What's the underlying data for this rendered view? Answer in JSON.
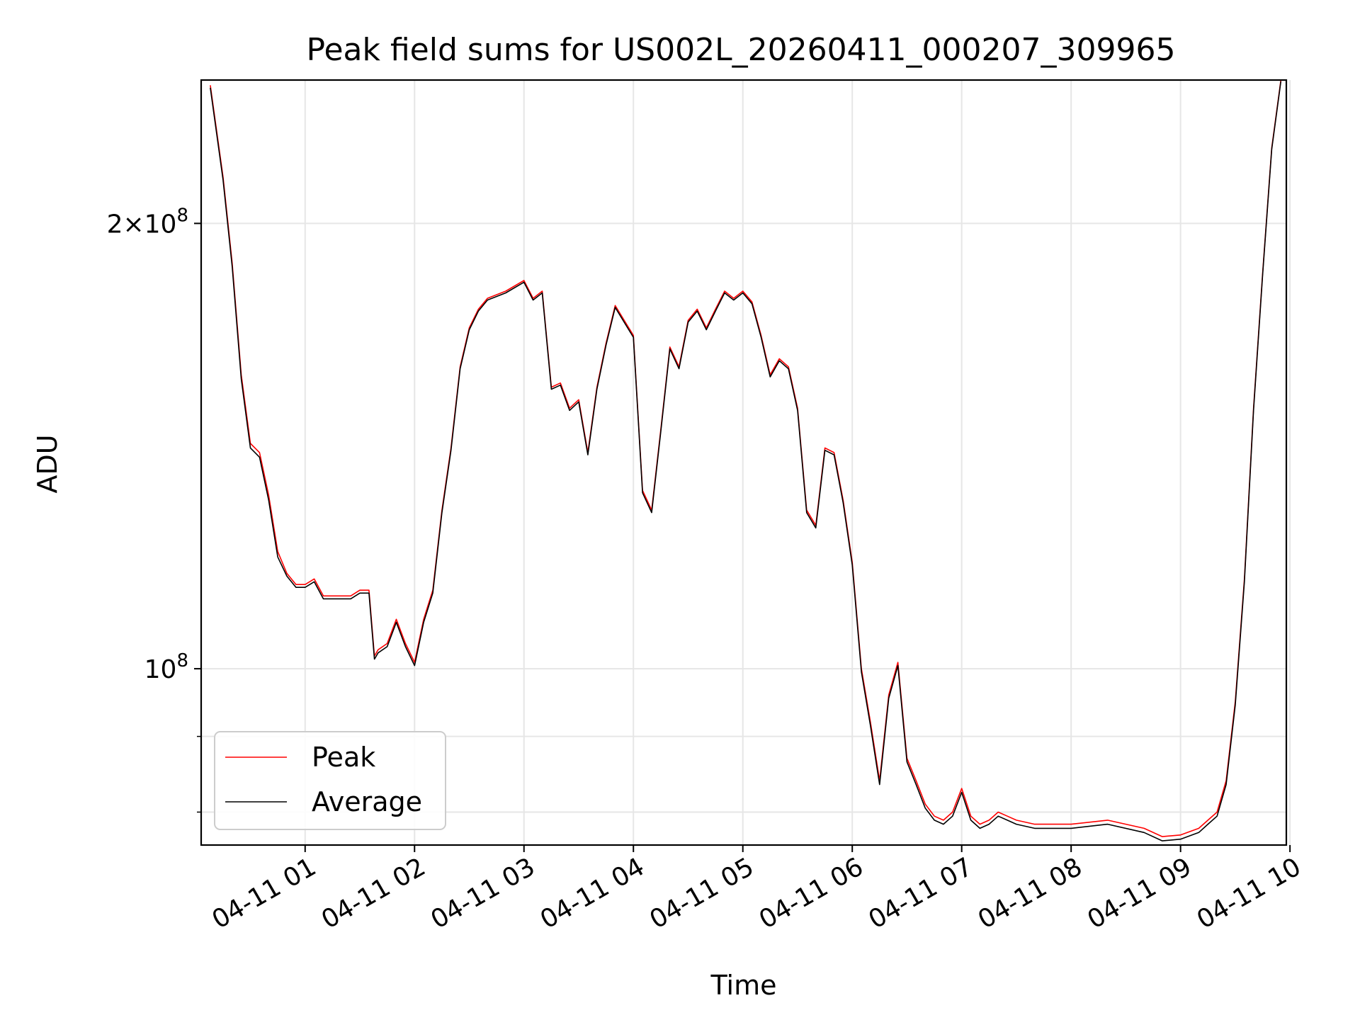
{
  "chart_data": {
    "type": "line",
    "title": "Peak field sums for US002L_20260411_000207_309965",
    "xlabel": "Time",
    "ylabel": "ADU",
    "y_scale": "log",
    "xlim": [
      "2026-04-11 00:03",
      "2026-04-11 09:58"
    ],
    "ylim": [
      76000000,
      250000000
    ],
    "grid": true,
    "legend_position": "lower-left",
    "x_ticks": [
      "04-11 01",
      "04-11 02",
      "04-11 03",
      "04-11 04",
      "04-11 05",
      "04-11 06",
      "04-11 07",
      "04-11 08",
      "04-11 09",
      "04-11 10"
    ],
    "x_tick_times": [
      "2026-04-11 01:00",
      "2026-04-11 02:00",
      "2026-04-11 03:00",
      "2026-04-11 04:00",
      "2026-04-11 05:00",
      "2026-04-11 06:00",
      "2026-04-11 07:00",
      "2026-04-11 08:00",
      "2026-04-11 09:00",
      "2026-04-11 10:00"
    ],
    "y_tick_labels": [
      {
        "value": 100000000,
        "mantissa": "",
        "base": "10",
        "exponent": "8"
      },
      {
        "value": 200000000,
        "mantissa": "2×",
        "base": "10",
        "exponent": "8"
      }
    ],
    "y_minor_ticks": [
      80000000,
      90000000
    ],
    "x": [
      "00:08",
      "00:15",
      "00:20",
      "00:25",
      "00:30",
      "00:35",
      "00:40",
      "00:45",
      "00:50",
      "00:55",
      "01:00",
      "01:05",
      "01:10",
      "01:15",
      "01:20",
      "01:25",
      "01:30",
      "01:35",
      "01:38",
      "01:40",
      "01:45",
      "01:50",
      "01:55",
      "02:00",
      "02:05",
      "02:10",
      "02:15",
      "02:20",
      "02:25",
      "02:30",
      "02:35",
      "02:40",
      "02:50",
      "03:00",
      "03:05",
      "03:10",
      "03:15",
      "03:20",
      "03:25",
      "03:30",
      "03:35",
      "03:40",
      "03:45",
      "03:50",
      "04:00",
      "04:05",
      "04:10",
      "04:15",
      "04:20",
      "04:25",
      "04:30",
      "04:35",
      "04:40",
      "04:45",
      "04:50",
      "04:55",
      "05:00",
      "05:05",
      "05:10",
      "05:15",
      "05:20",
      "05:25",
      "05:30",
      "05:35",
      "05:40",
      "05:45",
      "05:50",
      "05:55",
      "06:00",
      "06:05",
      "06:10",
      "06:15",
      "06:20",
      "06:25",
      "06:30",
      "06:35",
      "06:40",
      "06:45",
      "06:50",
      "06:55",
      "07:00",
      "07:05",
      "07:10",
      "07:15",
      "07:20",
      "07:25",
      "07:30",
      "07:40",
      "08:00",
      "08:20",
      "08:40",
      "08:50",
      "09:00",
      "09:10",
      "09:15",
      "09:20",
      "09:25",
      "09:30",
      "09:35",
      "09:40",
      "09:45",
      "09:50",
      "09:55"
    ],
    "series": [
      {
        "name": "Peak",
        "color": "#ff0000",
        "values": [
          248000000,
          215000000,
          188000000,
          158000000,
          142000000,
          140000000,
          131000000,
          120000000,
          116000000,
          114000000,
          114000000,
          115000000,
          112000000,
          112000000,
          112000000,
          112000000,
          113000000,
          113000000,
          102000000,
          103000000,
          104000000,
          108000000,
          104000000,
          101000000,
          108000000,
          113000000,
          128000000,
          141000000,
          160000000,
          170000000,
          175000000,
          178000000,
          180000000,
          183000000,
          178000000,
          180000000,
          155000000,
          156000000,
          150000000,
          152000000,
          140000000,
          155000000,
          166000000,
          176000000,
          168000000,
          132000000,
          128000000,
          145000000,
          165000000,
          160000000,
          172000000,
          175000000,
          170000000,
          175000000,
          180000000,
          178000000,
          180000000,
          177000000,
          168000000,
          158000000,
          162000000,
          160000000,
          150000000,
          128000000,
          125000000,
          141000000,
          140000000,
          130000000,
          118000000,
          100000000,
          92000000,
          84000000,
          96000000,
          101000000,
          87000000,
          84000000,
          81000000,
          79500000,
          79000000,
          80000000,
          83000000,
          79500000,
          78500000,
          79000000,
          80000000,
          79500000,
          79000000,
          78500000,
          78500000,
          79000000,
          78000000,
          77000000,
          77200000,
          78000000,
          79000000,
          80000000,
          84000000,
          95000000,
          115000000,
          150000000,
          185000000,
          225000000,
          250000000
        ]
      },
      {
        "name": "Average",
        "color": "#000000",
        "values": [
          247000000,
          214000000,
          187000000,
          157000000,
          141000000,
          139000000,
          130000000,
          119000000,
          115500000,
          113500000,
          113500000,
          114500000,
          111500000,
          111500000,
          111500000,
          111500000,
          112500000,
          112500000,
          101500000,
          102500000,
          103500000,
          107500000,
          103500000,
          100500000,
          107500000,
          112500000,
          127500000,
          140500000,
          159500000,
          169500000,
          174500000,
          177500000,
          179500000,
          182500000,
          177500000,
          179500000,
          154500000,
          155500000,
          149500000,
          151500000,
          139500000,
          154500000,
          165500000,
          175500000,
          167500000,
          131500000,
          127500000,
          144500000,
          164500000,
          159500000,
          171500000,
          174500000,
          169500000,
          174500000,
          179500000,
          177500000,
          179500000,
          176500000,
          167500000,
          157500000,
          161500000,
          159500000,
          149500000,
          127500000,
          124500000,
          140500000,
          139500000,
          129500000,
          117500000,
          99500000,
          91500000,
          83500000,
          95500000,
          100500000,
          86500000,
          83500000,
          80500000,
          79000000,
          78500000,
          79500000,
          82500000,
          79000000,
          78000000,
          78500000,
          79500000,
          79000000,
          78500000,
          78000000,
          78000000,
          78500000,
          77500000,
          76500000,
          76700000,
          77500000,
          78500000,
          79500000,
          83500000,
          94500000,
          114500000,
          149500000,
          184500000,
          224500000,
          249500000
        ]
      }
    ]
  }
}
